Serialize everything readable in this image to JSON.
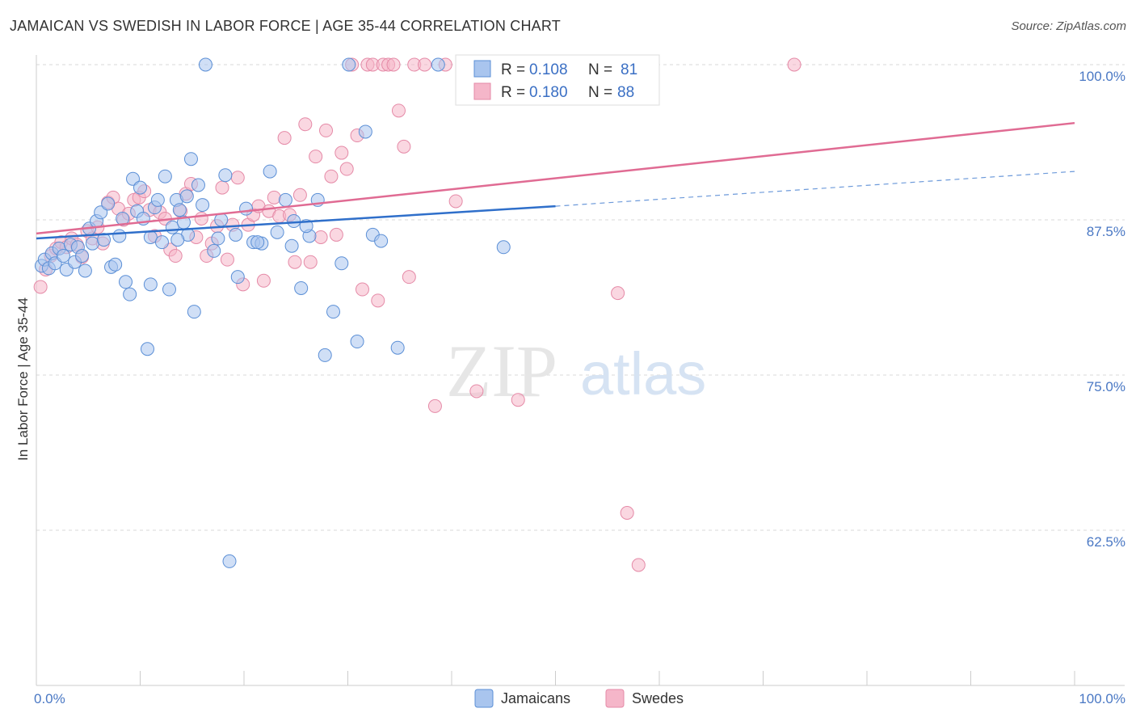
{
  "title": "JAMAICAN VS SWEDISH IN LABOR FORCE | AGE 35-44 CORRELATION CHART",
  "source": "Source: ZipAtlas.com",
  "watermark": {
    "zip": "ZIP",
    "atlas": "atlas"
  },
  "colors": {
    "jamaicans_fill": "#a9c5ee",
    "jamaicans_stroke": "#5b8fd6",
    "jamaicans_line": "#2f6fca",
    "swedes_fill": "#f5b6c9",
    "swedes_stroke": "#e58aa7",
    "swedes_line": "#e06b93",
    "grid": "#d8d8d8",
    "tick_label": "#4a78c4"
  },
  "legend": {
    "rows": [
      {
        "r_label": "R = ",
        "r_value": "0.108",
        "n_label": "N = ",
        "n_value": "81"
      },
      {
        "r_label": "R = ",
        "r_value": "0.180",
        "n_label": "N = ",
        "n_value": "88"
      }
    ]
  },
  "bottom_legend": [
    "Jamaicans",
    "Swedes"
  ],
  "chart_data": {
    "type": "scatter",
    "ylabel": "In Labor Force | Age 35-44",
    "xlim": [
      0,
      100
    ],
    "ylim": [
      50,
      100
    ],
    "x_tick_labels": [
      {
        "value": 0,
        "label": "0.0%"
      },
      {
        "value": 100,
        "label": "100.0%"
      }
    ],
    "y_ticks": [
      {
        "value": 62.5,
        "label": "62.5%"
      },
      {
        "value": 75.0,
        "label": "75.0%"
      },
      {
        "value": 87.5,
        "label": "87.5%"
      },
      {
        "value": 100.0,
        "label": "100.0%"
      }
    ],
    "grid": true,
    "legend_position": "top-center",
    "series": [
      {
        "name": "Jamaicans",
        "R": 0.108,
        "N": 81,
        "trend": {
          "x0": 0,
          "y0": 86.0,
          "x1": 50,
          "y1": 88.6,
          "dash_to_x": 100,
          "dash_to_y": 91.4
        },
        "points": [
          [
            0.5,
            83.8
          ],
          [
            0.8,
            84.3
          ],
          [
            1.2,
            83.6
          ],
          [
            1.5,
            84.8
          ],
          [
            1.8,
            84.0
          ],
          [
            2.2,
            85.2
          ],
          [
            2.6,
            84.6
          ],
          [
            2.9,
            83.5
          ],
          [
            3.3,
            85.5
          ],
          [
            3.7,
            84.1
          ],
          [
            4.0,
            85.3
          ],
          [
            4.4,
            84.6
          ],
          [
            4.7,
            83.4
          ],
          [
            5.1,
            86.8
          ],
          [
            5.4,
            85.6
          ],
          [
            5.8,
            87.4
          ],
          [
            6.2,
            88.1
          ],
          [
            6.5,
            85.9
          ],
          [
            6.9,
            88.8
          ],
          [
            7.2,
            83.7
          ],
          [
            7.6,
            83.9
          ],
          [
            8.0,
            86.2
          ],
          [
            8.3,
            87.6
          ],
          [
            8.6,
            82.5
          ],
          [
            9.0,
            81.5
          ],
          [
            9.3,
            90.8
          ],
          [
            9.7,
            88.2
          ],
          [
            10.0,
            90.1
          ],
          [
            10.3,
            87.6
          ],
          [
            10.7,
            77.1
          ],
          [
            11.0,
            86.1
          ],
          [
            11.4,
            88.5
          ],
          [
            11.7,
            89.1
          ],
          [
            12.1,
            85.7
          ],
          [
            12.4,
            91.0
          ],
          [
            12.8,
            81.9
          ],
          [
            13.1,
            86.9
          ],
          [
            13.5,
            89.1
          ],
          [
            13.8,
            88.3
          ],
          [
            14.2,
            87.3
          ],
          [
            14.5,
            89.4
          ],
          [
            14.9,
            92.4
          ],
          [
            15.2,
            80.1
          ],
          [
            15.6,
            90.3
          ],
          [
            16.0,
            88.7
          ],
          [
            16.3,
            100.0
          ],
          [
            14.6,
            86.3
          ],
          [
            17.1,
            85.0
          ],
          [
            17.5,
            86.0
          ],
          [
            17.8,
            87.5
          ],
          [
            18.2,
            91.1
          ],
          [
            18.6,
            60.0
          ],
          [
            19.4,
            82.9
          ],
          [
            20.2,
            88.4
          ],
          [
            20.9,
            85.7
          ],
          [
            21.7,
            85.6
          ],
          [
            22.5,
            91.4
          ],
          [
            23.2,
            86.5
          ],
          [
            24.0,
            89.1
          ],
          [
            24.8,
            87.4
          ],
          [
            25.5,
            82.0
          ],
          [
            26.3,
            86.2
          ],
          [
            27.1,
            89.1
          ],
          [
            27.8,
            76.6
          ],
          [
            28.6,
            80.1
          ],
          [
            29.4,
            84.0
          ],
          [
            30.1,
            100.0
          ],
          [
            30.9,
            77.7
          ],
          [
            31.7,
            94.6
          ],
          [
            32.4,
            86.3
          ],
          [
            33.2,
            85.8
          ],
          [
            34.8,
            77.2
          ],
          [
            38.7,
            100.0
          ],
          [
            42.5,
            100.0
          ],
          [
            21.3,
            85.7
          ],
          [
            24.6,
            85.4
          ],
          [
            26.0,
            87.0
          ],
          [
            11.0,
            82.3
          ],
          [
            13.6,
            85.9
          ],
          [
            19.2,
            86.3
          ],
          [
            45.0,
            85.3
          ]
        ]
      },
      {
        "name": "Swedes",
        "R": 0.18,
        "N": 88,
        "trend": {
          "x0": 0,
          "y0": 86.4,
          "x1": 100,
          "y1": 95.3
        },
        "points": [
          [
            0.4,
            82.1
          ],
          [
            0.9,
            83.5
          ],
          [
            1.4,
            84.6
          ],
          [
            1.9,
            85.2
          ],
          [
            2.4,
            85.7
          ],
          [
            2.9,
            85.3
          ],
          [
            3.4,
            86.0
          ],
          [
            3.9,
            85.5
          ],
          [
            4.4,
            84.5
          ],
          [
            4.9,
            86.6
          ],
          [
            5.4,
            86.0
          ],
          [
            5.9,
            86.9
          ],
          [
            6.4,
            85.6
          ],
          [
            6.9,
            88.9
          ],
          [
            7.4,
            89.3
          ],
          [
            7.9,
            88.4
          ],
          [
            8.4,
            87.5
          ],
          [
            8.9,
            88.0
          ],
          [
            9.4,
            89.1
          ],
          [
            9.9,
            89.3
          ],
          [
            10.4,
            89.8
          ],
          [
            10.9,
            88.3
          ],
          [
            11.4,
            86.2
          ],
          [
            11.9,
            88.1
          ],
          [
            12.4,
            87.6
          ],
          [
            12.9,
            85.1
          ],
          [
            13.4,
            84.6
          ],
          [
            13.9,
            88.2
          ],
          [
            14.4,
            89.6
          ],
          [
            14.9,
            90.4
          ],
          [
            15.4,
            86.1
          ],
          [
            15.9,
            87.6
          ],
          [
            16.4,
            84.6
          ],
          [
            16.9,
            85.6
          ],
          [
            17.4,
            87.0
          ],
          [
            17.9,
            90.1
          ],
          [
            18.4,
            84.3
          ],
          [
            18.9,
            87.1
          ],
          [
            19.4,
            90.9
          ],
          [
            19.9,
            82.3
          ],
          [
            20.4,
            87.1
          ],
          [
            20.9,
            87.9
          ],
          [
            21.4,
            88.6
          ],
          [
            21.9,
            82.6
          ],
          [
            22.4,
            88.2
          ],
          [
            22.9,
            89.3
          ],
          [
            23.4,
            87.8
          ],
          [
            23.9,
            94.1
          ],
          [
            24.4,
            87.9
          ],
          [
            24.9,
            84.1
          ],
          [
            25.4,
            89.5
          ],
          [
            25.9,
            95.2
          ],
          [
            26.4,
            84.1
          ],
          [
            26.9,
            92.6
          ],
          [
            27.4,
            86.1
          ],
          [
            27.9,
            94.7
          ],
          [
            28.4,
            91.0
          ],
          [
            28.9,
            86.3
          ],
          [
            29.4,
            92.9
          ],
          [
            29.9,
            91.6
          ],
          [
            30.4,
            100.0
          ],
          [
            30.9,
            94.3
          ],
          [
            31.4,
            81.9
          ],
          [
            31.9,
            100.0
          ],
          [
            32.4,
            100.0
          ],
          [
            32.9,
            81.0
          ],
          [
            33.4,
            100.0
          ],
          [
            33.9,
            100.0
          ],
          [
            34.4,
            100.0
          ],
          [
            34.9,
            96.3
          ],
          [
            35.4,
            93.4
          ],
          [
            35.9,
            82.9
          ],
          [
            36.4,
            100.0
          ],
          [
            37.4,
            100.0
          ],
          [
            38.4,
            72.5
          ],
          [
            39.4,
            100.0
          ],
          [
            40.4,
            89.0
          ],
          [
            41.4,
            100.0
          ],
          [
            42.4,
            73.7
          ],
          [
            43.4,
            100.0
          ],
          [
            44.4,
            100.0
          ],
          [
            45.4,
            100.0
          ],
          [
            46.4,
            73.0
          ],
          [
            47.4,
            100.0
          ],
          [
            56.9,
            63.9
          ],
          [
            56.0,
            81.6
          ],
          [
            58.0,
            59.7
          ],
          [
            73.0,
            100.0
          ]
        ]
      }
    ]
  }
}
